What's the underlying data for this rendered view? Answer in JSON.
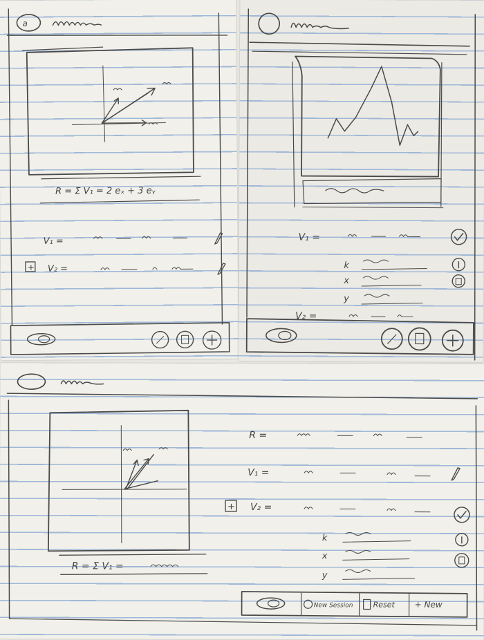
{
  "sketch_a": {
    "formula_sum": "R = Σ V₁ = 2 eₓ + 3 eᵧ",
    "v1_label": "V₁ =",
    "v2_label": "V₂ =",
    "add_box": "+"
  },
  "sketch_b": {
    "v1_label": "V₁ =",
    "v2_label": "V₂ =",
    "param_k": "k",
    "param_x": "x",
    "param_y": "y"
  },
  "sketch_c": {
    "r_label": "R =",
    "v1_label": "V₁ =",
    "v2_label": "V₂ =",
    "add_box": "+",
    "param_k": "k",
    "param_x": "x",
    "param_y": "y",
    "formula_sum": "R = Σ V₁ =",
    "toolbar": {
      "new_session": "New Session",
      "reset": "Reset",
      "new": "+ New"
    }
  },
  "colors": {
    "paper": "#f1f0ea",
    "rule": "#9fb8d8",
    "pen": "#4a4a4a"
  },
  "icons": [
    "eye-icon",
    "save-icon",
    "trash-icon",
    "plus-icon",
    "check-icon",
    "info-icon",
    "pencil-icon"
  ]
}
